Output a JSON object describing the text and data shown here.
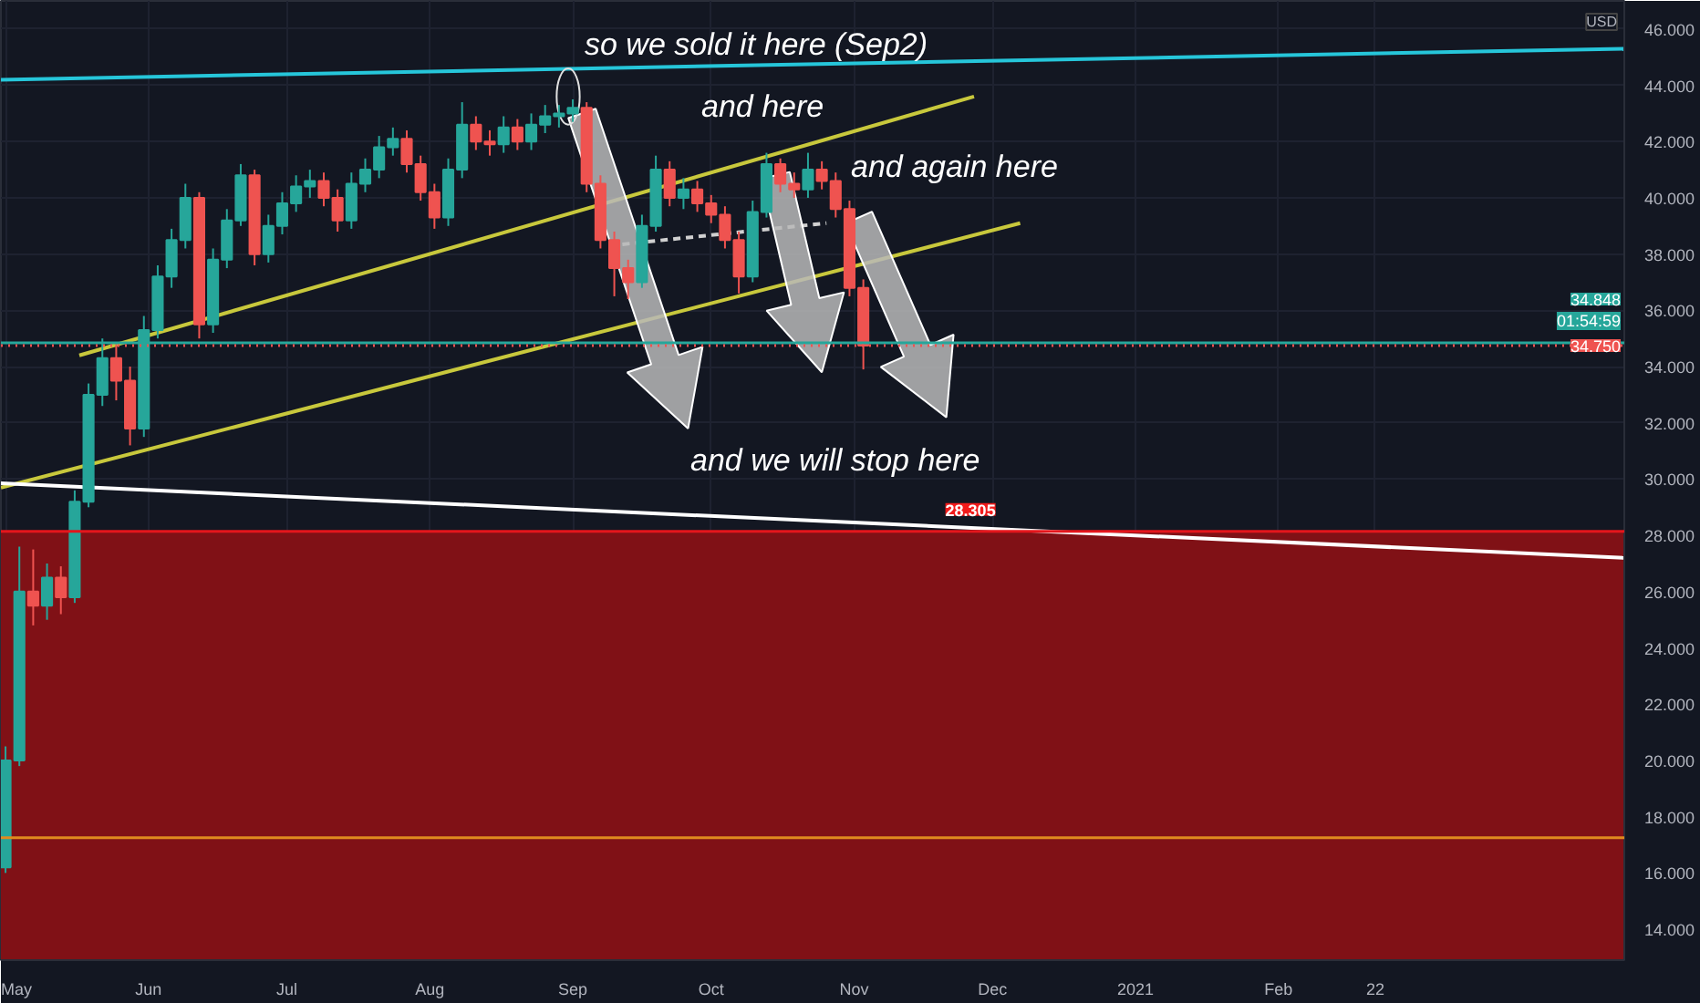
{
  "chart_data": {
    "type": "candlestick",
    "ylabel": "USD",
    "x": [
      "2020-05-01",
      "2020-05-04",
      "2020-05-07",
      "2020-05-10",
      "2020-05-13",
      "2020-05-16",
      "2020-05-19",
      "2020-05-22",
      "2020-05-25",
      "2020-05-28",
      "2020-05-31",
      "2020-06-03",
      "2020-06-06",
      "2020-06-09",
      "2020-06-12",
      "2020-06-15",
      "2020-06-18",
      "2020-06-21",
      "2020-06-24",
      "2020-06-27",
      "2020-06-30",
      "2020-07-03",
      "2020-07-06",
      "2020-07-09",
      "2020-07-12",
      "2020-07-15",
      "2020-07-18",
      "2020-07-21",
      "2020-07-24",
      "2020-07-27",
      "2020-07-30",
      "2020-08-02",
      "2020-08-05",
      "2020-08-08",
      "2020-08-11",
      "2020-08-14",
      "2020-08-17",
      "2020-08-20",
      "2020-08-23",
      "2020-08-26",
      "2020-08-29",
      "2020-09-01",
      "2020-09-04",
      "2020-09-07",
      "2020-09-10",
      "2020-09-13",
      "2020-09-16",
      "2020-09-19",
      "2020-09-22",
      "2020-09-25",
      "2020-09-28",
      "2020-10-01",
      "2020-10-04",
      "2020-10-07",
      "2020-10-10",
      "2020-10-13",
      "2020-10-16",
      "2020-10-19",
      "2020-10-22",
      "2020-10-25",
      "2020-10-28",
      "2020-10-31",
      "2020-11-03"
    ],
    "ohlc": [
      [
        16.2,
        20.5,
        16.0,
        20.0
      ],
      [
        20.0,
        27.6,
        19.8,
        26.0
      ],
      [
        26.0,
        27.5,
        24.8,
        25.5
      ],
      [
        25.5,
        27.0,
        25.0,
        26.5
      ],
      [
        26.5,
        26.9,
        25.2,
        25.8
      ],
      [
        25.8,
        29.6,
        25.6,
        29.2
      ],
      [
        29.2,
        33.4,
        29.0,
        33.0
      ],
      [
        33.0,
        35.0,
        32.6,
        34.3
      ],
      [
        34.3,
        34.8,
        32.8,
        33.5
      ],
      [
        33.5,
        34.0,
        31.2,
        31.8
      ],
      [
        31.8,
        35.8,
        31.5,
        35.3
      ],
      [
        35.3,
        37.6,
        35.0,
        37.2
      ],
      [
        37.2,
        38.9,
        36.8,
        38.5
      ],
      [
        38.5,
        40.5,
        38.2,
        40.0
      ],
      [
        40.0,
        40.2,
        35.0,
        35.5
      ],
      [
        35.5,
        38.2,
        35.2,
        37.8
      ],
      [
        37.8,
        39.6,
        37.5,
        39.2
      ],
      [
        39.2,
        41.2,
        39.0,
        40.8
      ],
      [
        40.8,
        41.0,
        37.6,
        38.0
      ],
      [
        38.0,
        39.4,
        37.7,
        39.0
      ],
      [
        39.0,
        40.2,
        38.7,
        39.8
      ],
      [
        39.8,
        40.8,
        39.5,
        40.4
      ],
      [
        40.4,
        41.0,
        40.0,
        40.6
      ],
      [
        40.6,
        40.9,
        39.7,
        40.0
      ],
      [
        40.0,
        40.3,
        38.8,
        39.2
      ],
      [
        39.2,
        40.9,
        38.9,
        40.5
      ],
      [
        40.5,
        41.4,
        40.2,
        41.0
      ],
      [
        41.0,
        42.2,
        40.7,
        41.8
      ],
      [
        41.8,
        42.5,
        41.5,
        42.1
      ],
      [
        42.1,
        42.4,
        40.9,
        41.2
      ],
      [
        41.2,
        41.5,
        39.9,
        40.2
      ],
      [
        40.2,
        40.5,
        38.9,
        39.3
      ],
      [
        39.3,
        41.4,
        39.0,
        41.0
      ],
      [
        41.0,
        43.4,
        40.7,
        42.6
      ],
      [
        42.6,
        42.9,
        41.7,
        42.0
      ],
      [
        42.0,
        42.4,
        41.5,
        41.9
      ],
      [
        41.9,
        42.9,
        41.6,
        42.5
      ],
      [
        42.5,
        42.8,
        41.7,
        42.0
      ],
      [
        42.0,
        43.0,
        41.7,
        42.6
      ],
      [
        42.6,
        43.3,
        42.3,
        42.9
      ],
      [
        42.9,
        43.3,
        42.5,
        43.0
      ],
      [
        43.0,
        43.5,
        42.7,
        43.2
      ],
      [
        43.2,
        43.4,
        40.2,
        40.5
      ],
      [
        40.5,
        40.8,
        38.2,
        38.5
      ],
      [
        38.5,
        38.8,
        36.5,
        37.5
      ],
      [
        37.5,
        37.8,
        36.4,
        37.0
      ],
      [
        37.0,
        39.4,
        36.8,
        39.0
      ],
      [
        39.0,
        41.5,
        38.8,
        41.0
      ],
      [
        41.0,
        41.3,
        39.7,
        40.0
      ],
      [
        40.0,
        40.7,
        39.6,
        40.3
      ],
      [
        40.3,
        40.6,
        39.5,
        39.8
      ],
      [
        39.8,
        40.1,
        39.1,
        39.4
      ],
      [
        39.4,
        39.7,
        38.2,
        38.5
      ],
      [
        38.5,
        38.8,
        36.6,
        37.2
      ],
      [
        37.2,
        39.9,
        37.0,
        39.5
      ],
      [
        39.5,
        41.6,
        39.3,
        41.2
      ],
      [
        41.2,
        41.4,
        40.2,
        40.5
      ],
      [
        40.5,
        40.9,
        40.0,
        40.3
      ],
      [
        40.3,
        41.6,
        40.0,
        41.0
      ],
      [
        41.0,
        41.3,
        40.3,
        40.6
      ],
      [
        40.6,
        40.9,
        39.3,
        39.6
      ],
      [
        39.6,
        39.9,
        36.5,
        36.8
      ],
      [
        36.8,
        37.1,
        33.9,
        34.75
      ]
    ],
    "series": [
      {
        "type": "line",
        "color": "#26c6da",
        "x": [
          "2020-04-30",
          "2021-04-17"
        ],
        "values": [
          44.2,
          45.3
        ]
      },
      {
        "type": "line",
        "color": "#c8c83c",
        "x": [
          "2020-05-17",
          "2020-11-27"
        ],
        "values": [
          34.4,
          43.6
        ]
      },
      {
        "type": "line",
        "color": "#c8c83c",
        "x": [
          "2020-04-30",
          "2020-12-07"
        ],
        "values": [
          29.7,
          39.1
        ]
      },
      {
        "type": "line",
        "color": "#ffffff",
        "x": [
          "2020-04-30",
          "2021-04-17"
        ],
        "values": [
          29.85,
          27.2
        ]
      },
      {
        "type": "line",
        "color": "#d0d0d0",
        "line_style": "dashed",
        "x": [
          "2020-09-09",
          "2020-10-26"
        ],
        "values": [
          38.3,
          39.1
        ]
      }
    ],
    "bands": [
      {
        "axis": "y",
        "from": 12.9,
        "to": 28.14,
        "color": "#801116"
      }
    ],
    "ref_lines": [
      {
        "axis": "y",
        "value": 28.14,
        "color": "#e5161c"
      },
      {
        "axis": "y",
        "value": 17.25,
        "color": "#e08a1e"
      },
      {
        "axis": "y",
        "value": 34.848,
        "label": "34.848",
        "color": "#26a69a"
      },
      {
        "axis": "y",
        "value": 34.75,
        "label": "34.750",
        "color": "#ef5350",
        "line_style": "dotted"
      }
    ],
    "annotations": [
      "01:54:59",
      "so we sold it here (Sep2)",
      "and here",
      "and again here",
      "and we will stop here",
      {
        "text": "28.305",
        "x": "2020-11-20",
        "y": 28.305
      }
    ],
    "xlim": [
      "2020-04-30",
      "2021-04-17"
    ],
    "xticks": [
      {
        "value": "2020-05-01",
        "label": "May"
      },
      {
        "value": "2020-06-01",
        "label": "Jun"
      },
      {
        "value": "2020-07-01",
        "label": "Jul"
      },
      {
        "value": "2020-08-01",
        "label": "Aug"
      },
      {
        "value": "2020-09-01",
        "label": "Sep"
      },
      {
        "value": "2020-10-01",
        "label": "Oct"
      },
      {
        "value": "2020-11-01",
        "label": "Nov"
      },
      {
        "value": "2020-12-01",
        "label": "Dec"
      },
      {
        "value": "2021-01-01",
        "label": "2021"
      },
      {
        "value": "2021-02-01",
        "label": "Feb"
      },
      {
        "value": "2021-02-22",
        "label": "22"
      }
    ],
    "ylim": [
      12.9,
      47.0
    ],
    "yticks": [
      {
        "value": 14,
        "label": "14.000"
      },
      {
        "value": 16,
        "label": "16.000"
      },
      {
        "value": 18,
        "label": "18.000"
      },
      {
        "value": 20,
        "label": "20.000"
      },
      {
        "value": 22,
        "label": "22.000"
      },
      {
        "value": 24,
        "label": "24.000"
      },
      {
        "value": 26,
        "label": "26.000"
      },
      {
        "value": 28,
        "label": "28.000"
      },
      {
        "value": 30,
        "label": "30.000"
      },
      {
        "value": 32,
        "label": "32.000"
      },
      {
        "value": 34,
        "label": "34.000"
      },
      {
        "value": 36,
        "label": "36.000"
      },
      {
        "value": 38,
        "label": "38.000"
      },
      {
        "value": 40,
        "label": "40.000"
      },
      {
        "value": 42,
        "label": "42.000"
      },
      {
        "value": 44,
        "label": "44.000"
      },
      {
        "value": 46,
        "label": "46.000"
      }
    ],
    "grid": true
  }
}
